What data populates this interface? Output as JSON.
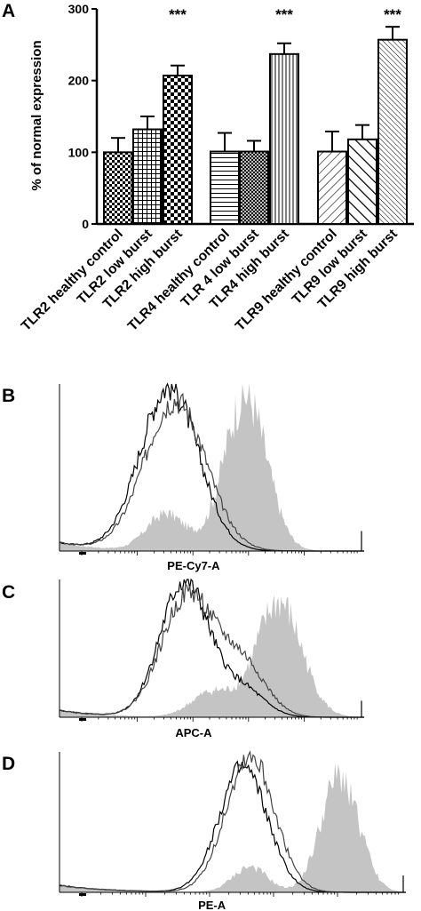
{
  "panels": {
    "a": "A",
    "b": "B",
    "c": "C",
    "d": "D"
  },
  "chart_data": [
    {
      "panel": "A",
      "type": "bar",
      "ylabel": "% of normal expression",
      "ylim": [
        0,
        300
      ],
      "yticks": [
        0,
        100,
        200,
        300
      ],
      "categories": [
        "TLR2 healthy control",
        "TLR2 low burst",
        "TLR2 high burst",
        "TLR4 healthy control",
        "TLR 4 low burst",
        "TLR4 high burst",
        "TLR9 healthy control",
        "TLR9 low burst",
        "TLR9 high burst"
      ],
      "values": [
        100,
        132,
        207,
        101,
        101,
        237,
        101,
        118,
        257
      ],
      "errors": [
        20,
        18,
        14,
        26,
        15,
        15,
        28,
        20,
        18
      ],
      "patterns": [
        "check-small",
        "grid",
        "checker",
        "hlines",
        "crosshatch-dense",
        "vlines",
        "diag-right",
        "diag-left-wide",
        "diag-left-dense"
      ],
      "annotations": [
        {
          "category": "TLR2 high burst",
          "text": "***"
        },
        {
          "category": "TLR4 high burst",
          "text": "***"
        },
        {
          "category": "TLR9 high burst",
          "text": "***"
        }
      ],
      "grid": false
    },
    {
      "panel": "B",
      "type": "area",
      "xlabel": "PE-Cy7-A",
      "series": [
        {
          "style": "filled-gray",
          "color": "#c4c4c4",
          "peak": 0.61,
          "height": 0.93,
          "width": 0.07,
          "second_peak": 0.35,
          "second_height": 0.22
        },
        {
          "style": "line",
          "color": "#000000",
          "peak": 0.36,
          "height": 0.98,
          "width": 0.095
        },
        {
          "style": "line",
          "color": "#444444",
          "peak": 0.38,
          "height": 0.9,
          "width": 0.1
        }
      ]
    },
    {
      "panel": "C",
      "type": "area",
      "xlabel": "APC-A",
      "series": [
        {
          "style": "filled-gray",
          "color": "#c4c4c4",
          "peak": 0.72,
          "height": 0.83,
          "width": 0.075,
          "second_peak": 0.5,
          "second_height": 0.18
        },
        {
          "style": "line",
          "color": "#000000",
          "peak": 0.41,
          "height": 0.98,
          "width": 0.08,
          "second_peak": 0.6,
          "second_height": 0.2
        },
        {
          "style": "line",
          "color": "#444444",
          "peak": 0.42,
          "height": 0.88,
          "width": 0.085,
          "second_peak": 0.6,
          "second_height": 0.38
        }
      ]
    },
    {
      "panel": "D",
      "type": "area",
      "xlabel": "PE-A",
      "series": [
        {
          "style": "filled-gray",
          "color": "#c4c4c4",
          "peak": 0.81,
          "height": 0.82,
          "width": 0.055,
          "second_peak": 0.55,
          "second_height": 0.18
        },
        {
          "style": "line",
          "color": "#000000",
          "peak": 0.53,
          "height": 0.88,
          "width": 0.07
        },
        {
          "style": "line",
          "color": "#444444",
          "peak": 0.55,
          "height": 0.97,
          "width": 0.07
        }
      ]
    }
  ]
}
